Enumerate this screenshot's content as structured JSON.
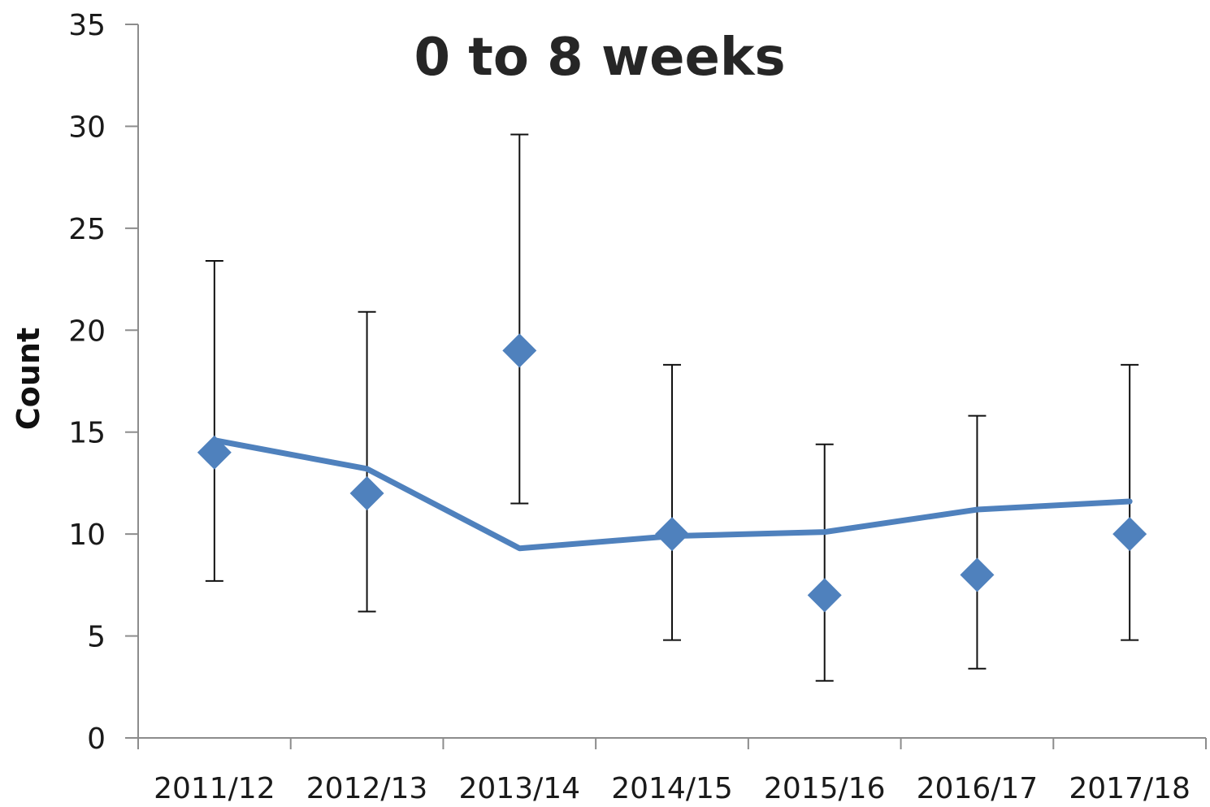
{
  "chart_data": {
    "type": "scatter",
    "title": "0 to 8 weeks",
    "xlabel": "",
    "ylabel": "Count",
    "categories": [
      "2011/12",
      "2012/13",
      "2013/14",
      "2014/15",
      "2015/16",
      "2016/17",
      "2017/18"
    ],
    "y_ticks": [
      "0",
      "5",
      "10",
      "15",
      "20",
      "25",
      "30",
      "35"
    ],
    "ylim": [
      0,
      35
    ],
    "grid": false,
    "legend": "none",
    "series": [
      {
        "kind": "points",
        "marker": "diamond",
        "color": "#4f81bd",
        "values": [
          14,
          12,
          19,
          10,
          7,
          8,
          10
        ],
        "error_low": [
          7.7,
          6.2,
          11.5,
          4.8,
          2.8,
          3.4,
          4.8
        ],
        "error_high": [
          23.4,
          20.9,
          29.6,
          18.3,
          14.4,
          15.8,
          18.3
        ]
      },
      {
        "kind": "line",
        "color": "#4f81bd",
        "values": [
          14.6,
          13.2,
          9.3,
          9.9,
          10.1,
          11.2,
          11.6
        ]
      }
    ]
  }
}
